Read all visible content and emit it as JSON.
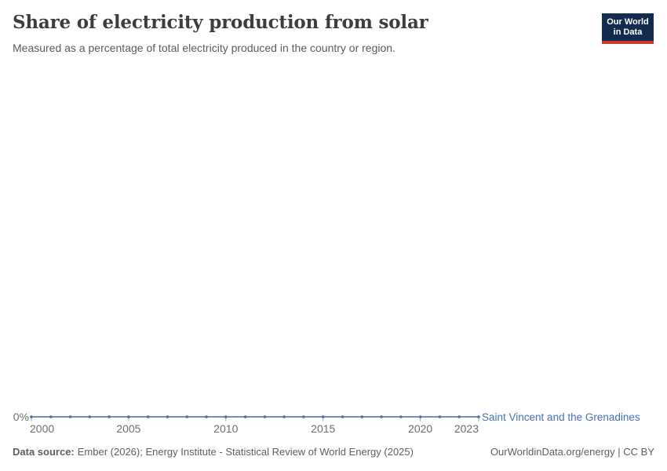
{
  "header": {
    "title": "Share of electricity production from solar",
    "subtitle": "Measured as a percentage of total electricity produced in the country or region.",
    "logo": {
      "line1": "Our World",
      "line2": "in Data"
    }
  },
  "chart_data": {
    "type": "line",
    "title": "Share of electricity production from solar",
    "subtitle": "Measured as a percentage of total electricity produced in the country or region.",
    "x": [
      2000,
      2001,
      2002,
      2003,
      2004,
      2005,
      2006,
      2007,
      2008,
      2009,
      2010,
      2011,
      2012,
      2013,
      2014,
      2015,
      2016,
      2017,
      2018,
      2019,
      2020,
      2021,
      2022,
      2023
    ],
    "series": [
      {
        "name": "Saint Vincent and the Grenadines",
        "values": [
          0,
          0,
          0,
          0,
          0,
          0,
          0,
          0,
          0,
          0,
          0,
          0,
          0,
          0,
          0,
          0,
          0,
          0,
          0,
          0,
          0,
          0,
          0,
          0
        ],
        "color": "#4c6bac"
      }
    ],
    "unit": "%",
    "xlabel": "",
    "ylabel": "",
    "ylim": [
      0,
      0
    ],
    "grid": false,
    "legend_position": "end-of-line",
    "y_axis_ticks": [
      "0%"
    ],
    "x_axis_ticks": [
      2000,
      2005,
      2010,
      2015,
      2020,
      2023
    ]
  },
  "axis": {
    "y_zero_label": "0%",
    "tick_color": "#a0a0a0"
  },
  "colors": {
    "line": "#4c6bac",
    "entity_label": "#4272b8",
    "title": "#3d3d3d",
    "subtitle": "#5b5b5b",
    "logo_navy": "#112c4f",
    "logo_red": "#d1352b"
  },
  "footer": {
    "source_label": "Data source:",
    "source_text": "Ember (2026); Energy Institute - Statistical Review of World Energy (2025)",
    "right_text": "OurWorldinData.org/energy | CC BY"
  }
}
